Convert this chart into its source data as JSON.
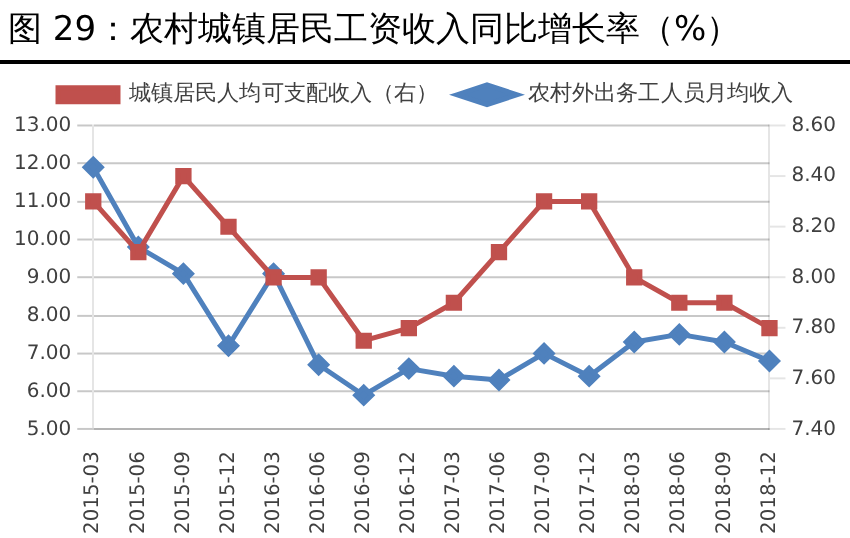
{
  "chart_data": {
    "type": "line",
    "title": "图 29：农村城镇居民工资收入同比增长率（%）",
    "categories": [
      "2015-03",
      "2015-06",
      "2015-09",
      "2015-12",
      "2016-03",
      "2016-06",
      "2016-09",
      "2016-12",
      "2017-03",
      "2017-06",
      "2017-09",
      "2017-12",
      "2018-03",
      "2018-06",
      "2018-09",
      "2018-12"
    ],
    "series": [
      {
        "name": "农村外出务工人员月均收入",
        "color": "#4f81bd",
        "marker": "diamond",
        "values": [
          11.9,
          9.8,
          9.1,
          7.2,
          9.1,
          6.7,
          5.9,
          6.6,
          6.4,
          6.3,
          7.0,
          6.4,
          7.3,
          7.5,
          7.3,
          6.8
        ]
      },
      {
        "name": "城镇居民人均可支配收入（右）",
        "color": "#c0504d",
        "marker": "square",
        "axis": "y2",
        "values": [
          8.3,
          8.1,
          8.4,
          8.2,
          8.0,
          8.0,
          7.75,
          7.8,
          7.9,
          8.1,
          8.3,
          8.3,
          8.0,
          7.9,
          7.9,
          7.8
        ]
      }
    ],
    "ylim": [
      5,
      13
    ],
    "yticks": [
      {
        "value": 5,
        "label": "5.00"
      },
      {
        "value": 6,
        "label": "6.00"
      },
      {
        "value": 7,
        "label": "7.00"
      },
      {
        "value": 8,
        "label": "8.00"
      },
      {
        "value": 9,
        "label": "9.00"
      },
      {
        "value": 10,
        "label": "10.00"
      },
      {
        "value": 11,
        "label": "11.00"
      },
      {
        "value": 12,
        "label": "12.00"
      },
      {
        "value": 13,
        "label": "13.00"
      }
    ],
    "y2lim": [
      7.4,
      8.6
    ],
    "y2ticks": [
      {
        "value": 7.4,
        "label": "7.40"
      },
      {
        "value": 7.6,
        "label": "7.60"
      },
      {
        "value": 7.8,
        "label": "7.80"
      },
      {
        "value": 8,
        "label": "8.00"
      },
      {
        "value": 8.2,
        "label": "8.20"
      },
      {
        "value": 8.4,
        "label": "8.40"
      },
      {
        "value": 8.6,
        "label": "8.60"
      }
    ],
    "grid": "y",
    "legend": "top",
    "line_style": "solid"
  }
}
